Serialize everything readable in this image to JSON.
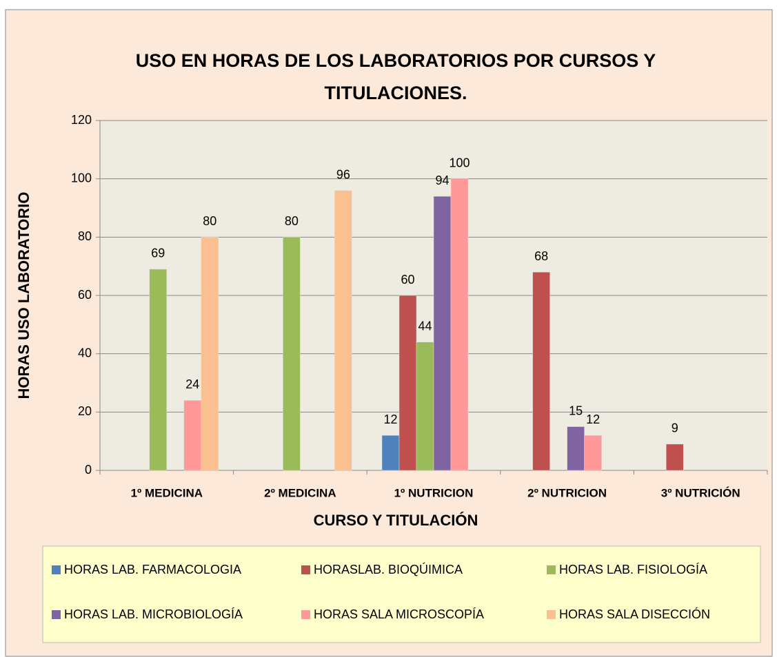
{
  "chart_data": {
    "type": "bar",
    "title": "USO EN HORAS DE LOS LABORATORIOS POR CURSOS Y TITULACIONES.",
    "x_label": "CURSO Y TITULACIÓN",
    "y_label": "HORAS USO LABORATORIO",
    "categories": [
      "1º MEDICINA",
      "2º MEDICINA",
      "1º NUTRICION",
      "2º NUTRICION",
      "3º NUTRICIÓN"
    ],
    "series": [
      {
        "name": "HORAS LAB. FARMACOLOGIA",
        "color": "#4f81bd",
        "values": [
          null,
          null,
          12,
          null,
          null
        ]
      },
      {
        "name": "HORASLAB. BIOQÚIMICA",
        "color": "#c0504d",
        "values": [
          null,
          null,
          60,
          68,
          9
        ]
      },
      {
        "name": "HORAS LAB. FISIOLOGÍA",
        "color": "#9bbb59",
        "values": [
          69,
          80,
          44,
          null,
          null
        ]
      },
      {
        "name": "HORAS LAB. MICROBIOLOGÍA",
        "color": "#8064a2",
        "values": [
          null,
          null,
          94,
          15,
          null
        ]
      },
      {
        "name": "HORAS SALA MICROSCOPÍA",
        "color": "#ff9999",
        "values": [
          24,
          null,
          100,
          12,
          null
        ]
      },
      {
        "name": "HORAS SALA DISECCIÓN",
        "color": "#fac090",
        "values": [
          80,
          96,
          null,
          null,
          null
        ]
      }
    ],
    "ylim": [
      0,
      120
    ],
    "yticks": [
      0,
      20,
      40,
      60,
      80,
      100,
      120
    ],
    "grid": true,
    "legend": "bottom"
  }
}
